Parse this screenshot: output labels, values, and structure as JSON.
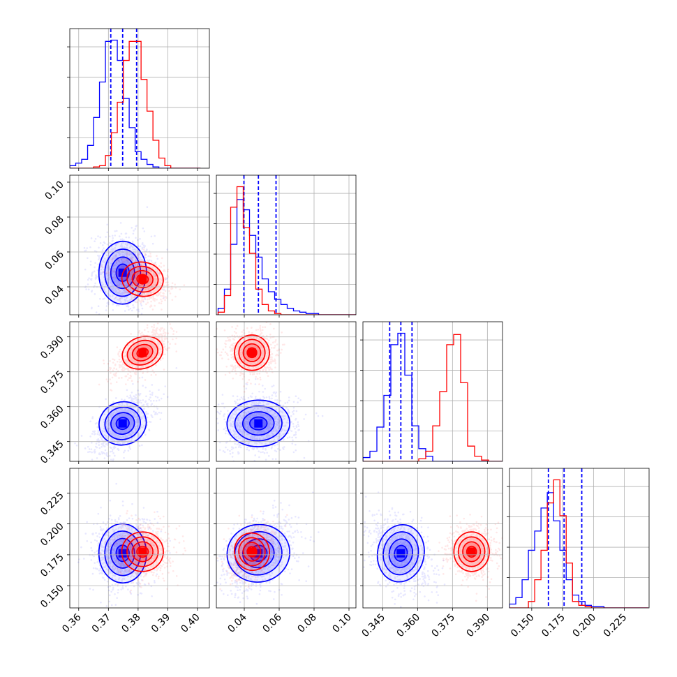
{
  "chart_data": {
    "type": "corner",
    "title": "",
    "grid": true,
    "colors": {
      "series_a": "#0000ff",
      "series_b": "#ff0000",
      "quantile_line": "#0000ff"
    },
    "parameters": [
      {
        "ticks": [
          0.36,
          0.37,
          0.38,
          0.39,
          0.4
        ],
        "tick_labels": [
          "0.36",
          "0.37",
          "0.38",
          "0.39",
          "0.40"
        ],
        "range": [
          0.357,
          0.404
        ]
      },
      {
        "ticks": [
          0.04,
          0.06,
          0.08,
          0.1
        ],
        "tick_labels": [
          "0.04",
          "0.06",
          "0.08",
          "0.10"
        ],
        "range": [
          0.024,
          0.104
        ]
      },
      {
        "ticks": [
          0.345,
          0.36,
          0.375,
          0.39
        ],
        "tick_labels": [
          "0.345",
          "0.360",
          "0.375",
          "0.390"
        ],
        "range": [
          0.3365,
          0.3965
        ]
      },
      {
        "ticks": [
          0.15,
          0.175,
          0.2,
          0.225
        ],
        "tick_labels": [
          "0.150",
          "0.175",
          "0.200",
          "0.225"
        ],
        "range": [
          0.132,
          0.245
        ]
      }
    ],
    "series": [
      {
        "color": "#0000ff",
        "means": [
          0.3748,
          0.0481,
          0.3528,
          0.1762
        ],
        "sigmas": [
          0.004,
          0.009,
          0.005,
          0.012
        ],
        "correlations": [
          [
            0,
            1,
            -0.05
          ],
          [
            0,
            2,
            0.55
          ],
          [
            0,
            3,
            0.05
          ],
          [
            1,
            2,
            0.05
          ],
          [
            1,
            3,
            0.35
          ],
          [
            2,
            3,
            -0.35
          ]
        ],
        "histograms": [
          {
            "bin_start": 0.357,
            "bin_width": 0.002,
            "counts": [
              2,
              4,
              7,
              18,
              40,
              68,
              100,
              101,
              85,
              55,
              32,
              13,
              7,
              3,
              1,
              0,
              0,
              0,
              0,
              0,
              0,
              0
            ]
          },
          {
            "bin_start": 0.025,
            "bin_width": 0.0036,
            "counts": [
              5,
              20,
              55,
              90,
              82,
              62,
              45,
              28,
              18,
              12,
              8,
              5,
              3,
              2,
              1,
              1,
              0,
              0,
              0,
              0,
              0,
              0
            ]
          },
          {
            "bin_start": 0.3365,
            "bin_width": 0.003,
            "counts": [
              3,
              8,
              27,
              52,
              92,
              101,
              68,
              28,
              10,
              4,
              0,
              0,
              0,
              0,
              0,
              0,
              0,
              0,
              0,
              0
            ]
          },
          {
            "bin_start": 0.132,
            "bin_width": 0.0051,
            "counts": [
              3,
              8,
              22,
              45,
              60,
              78,
              90,
              68,
              45,
              22,
              10,
              5,
              2,
              1,
              1,
              0,
              0,
              0,
              0,
              0,
              0,
              0
            ]
          }
        ],
        "quantiles": [
          [
            0.3708,
            0.3748,
            0.3795
          ],
          [
            0.0398,
            0.0481,
            0.0582
          ],
          [
            0.348,
            0.3528,
            0.3576
          ],
          [
            0.1635,
            0.1762,
            0.1905
          ]
        ]
      },
      {
        "color": "#ff0000",
        "means": [
          0.3815,
          0.0444,
          0.3832,
          0.1775
        ],
        "sigmas": [
          0.0035,
          0.005,
          0.0038,
          0.008
        ],
        "correlations": [
          [
            0,
            1,
            -0.3
          ],
          [
            0,
            2,
            0.65
          ],
          [
            0,
            3,
            0.05
          ],
          [
            1,
            2,
            0.0
          ],
          [
            1,
            3,
            0.45
          ],
          [
            2,
            3,
            0.0
          ]
        ],
        "histograms": [
          {
            "bin_start": 0.357,
            "bin_width": 0.002,
            "counts": [
              0,
              0,
              0,
              0,
              1,
              2,
              10,
              28,
              52,
              85,
              100,
              100,
              70,
              45,
              22,
              8,
              2,
              0,
              0,
              0,
              0,
              0
            ]
          },
          {
            "bin_start": 0.025,
            "bin_width": 0.0036,
            "counts": [
              2,
              15,
              84,
              100,
              68,
              48,
              20,
              8,
              3,
              1,
              0,
              0,
              0,
              0,
              0,
              0,
              0,
              0,
              0,
              0,
              0,
              0
            ]
          },
          {
            "bin_start": 0.3365,
            "bin_width": 0.003,
            "counts": [
              0,
              0,
              0,
              0,
              0,
              0,
              0,
              0,
              2,
              8,
              28,
              55,
              92,
              100,
              62,
              12,
              4,
              1,
              0,
              0
            ]
          },
          {
            "bin_start": 0.132,
            "bin_width": 0.0051,
            "counts": [
              0,
              0,
              0,
              5,
              22,
              45,
              82,
              100,
              72,
              35,
              5,
              2,
              1,
              0,
              0,
              0,
              0,
              0,
              0,
              0,
              0,
              0
            ]
          }
        ]
      }
    ]
  }
}
